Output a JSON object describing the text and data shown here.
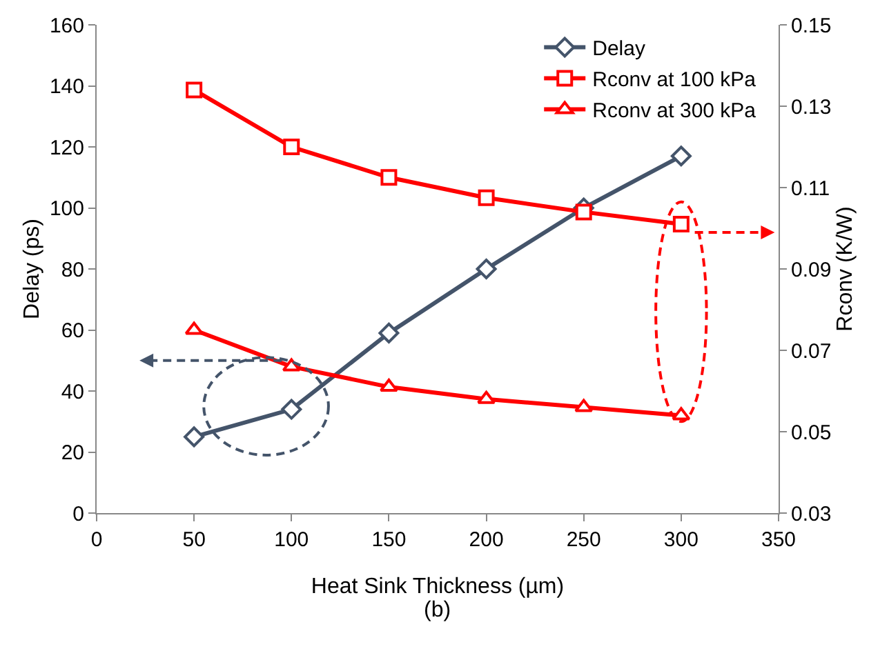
{
  "chart_data": {
    "type": "line",
    "xlabel": "Heat Sink Thickness (µm)",
    "ylabel": "Delay (ps)",
    "y2label": "Rconv (K/W)",
    "x": [
      50,
      100,
      150,
      200,
      250,
      300
    ],
    "series": [
      {
        "name": "Delay",
        "color": "#44546a",
        "marker": "diamond",
        "values": [
          25,
          34,
          59,
          80,
          100,
          117
        ]
      },
      {
        "name": "Rconv at 100 kPa",
        "color": "#ff0000",
        "marker": "square",
        "axis": "y2",
        "values": [
          0.134,
          0.12,
          0.1125,
          0.1075,
          0.104,
          0.101
        ]
      },
      {
        "name": "Rconv at 300 kPa",
        "color": "#ff0000",
        "marker": "triangle",
        "axis": "y2",
        "values": [
          0.075,
          0.066,
          0.061,
          0.058,
          0.056,
          0.054
        ]
      }
    ],
    "xlim": [
      0,
      350
    ],
    "xticks": [
      0,
      50,
      100,
      150,
      200,
      250,
      300,
      350
    ],
    "ylim": [
      0,
      160
    ],
    "yticks": [
      0,
      20,
      40,
      60,
      80,
      100,
      120,
      140,
      160
    ],
    "y2lim": [
      0.03,
      0.15
    ],
    "y2ticks": [
      0.03,
      0.05,
      0.07,
      0.09,
      0.11,
      0.13,
      0.15
    ],
    "grid": false,
    "legend": "top right",
    "line_style": "solid",
    "annotations": [
      "(b)"
    ]
  }
}
